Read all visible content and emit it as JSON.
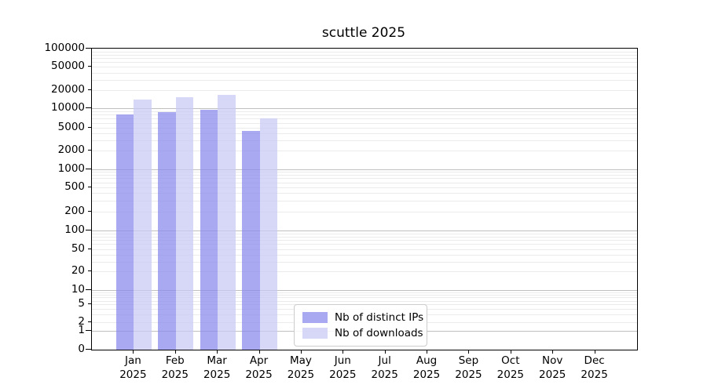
{
  "chart_data": {
    "type": "bar",
    "title": "scuttle 2025",
    "categories": [
      "Jan",
      "Feb",
      "Mar",
      "Apr",
      "May",
      "Jun",
      "Jul",
      "Aug",
      "Sep",
      "Oct",
      "Nov",
      "Dec"
    ],
    "category_year": "2025",
    "series": [
      {
        "name": "Nb of distinct IPs",
        "color": "#a9a9f1",
        "fill": "rgba(136,136,236,0.72)",
        "values": [
          8000,
          8700,
          9500,
          4500,
          0,
          0,
          0,
          0,
          0,
          0,
          0,
          0
        ]
      },
      {
        "name": "Nb of downloads",
        "color": "#d8d8f8",
        "fill": "rgba(200,200,245,0.72)",
        "values": [
          14000,
          15000,
          16500,
          7000,
          0,
          0,
          0,
          0,
          0,
          0,
          0,
          0
        ]
      }
    ],
    "xlabel": "",
    "ylabel": "",
    "yscale": "symlog",
    "ylim": [
      0,
      100000
    ],
    "yticks": [
      100000,
      50000,
      20000,
      10000,
      5000,
      2000,
      1000,
      500,
      200,
      100,
      50,
      20,
      10,
      5,
      2,
      1,
      0
    ],
    "grid": {
      "axis": "y",
      "major_color": "#c0c0c0",
      "minor_color": "#ebebeb"
    },
    "legend": {
      "position": "lower-center",
      "entries": [
        "Nb of distinct IPs",
        "Nb of downloads"
      ]
    }
  }
}
